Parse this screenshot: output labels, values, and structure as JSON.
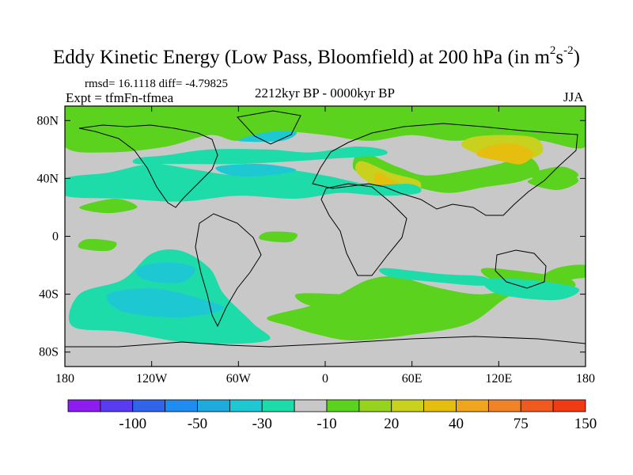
{
  "title": {
    "main": "Eddy Kinetic Energy (Low Pass, Bloomfield) at 200 hPa (in m",
    "sup1": "2",
    "mid": "s",
    "sup2": "-2",
    "end": ")"
  },
  "stats": "rmsd= 16.1118  diff= -4.79825",
  "expt": "Expt = tfmFn-tfmea",
  "period": "2212kyr BP - 0000kyr BP",
  "season": "JJA",
  "chart_data": {
    "type": "heatmap",
    "projection": "cylindrical-equidistant",
    "xlim": [
      -180,
      180
    ],
    "ylim": [
      -90,
      90
    ],
    "x_ticks": [
      {
        "value": -180,
        "label": "180"
      },
      {
        "value": -120,
        "label": "120W"
      },
      {
        "value": -60,
        "label": "60W"
      },
      {
        "value": 0,
        "label": "0"
      },
      {
        "value": 60,
        "label": "60E"
      },
      {
        "value": 120,
        "label": "120E"
      },
      {
        "value": 180,
        "label": "180"
      }
    ],
    "y_ticks": [
      {
        "value": 80,
        "label": "80N"
      },
      {
        "value": 40,
        "label": "40N"
      },
      {
        "value": 0,
        "label": "0"
      },
      {
        "value": -40,
        "label": "40S"
      },
      {
        "value": -80,
        "label": "80S"
      }
    ],
    "colorbar": {
      "colors": [
        "#8c1cf0",
        "#5a3cf0",
        "#2f64eb",
        "#1e8cf0",
        "#1eaadc",
        "#1ec8d2",
        "#1edcaa",
        "#c8c8c8",
        "#5ad21e",
        "#96d21e",
        "#c8d21e",
        "#e6be10",
        "#f0a51e",
        "#f08228",
        "#f05a1e",
        "#f03c14"
      ],
      "labels": [
        {
          "after_index": 1,
          "text": "-100"
        },
        {
          "after_index": 3,
          "text": "-50"
        },
        {
          "after_index": 5,
          "text": "-30"
        },
        {
          "after_index": 7,
          "text": "-10"
        },
        {
          "after_index": 9,
          "text": "20"
        },
        {
          "after_index": 11,
          "text": "40"
        },
        {
          "after_index": 13,
          "text": "75"
        },
        {
          "after_index": 15,
          "text": "150"
        }
      ]
    },
    "regions": [
      {
        "level": 8,
        "points": [
          [
            -180,
            62
          ],
          [
            -150,
            58
          ],
          [
            -110,
            62
          ],
          [
            -80,
            70
          ],
          [
            -60,
            66
          ],
          [
            -30,
            72
          ],
          [
            0,
            70
          ],
          [
            30,
            66
          ],
          [
            60,
            70
          ],
          [
            90,
            66
          ],
          [
            120,
            70
          ],
          [
            150,
            66
          ],
          [
            180,
            62
          ],
          [
            180,
            90
          ],
          [
            -180,
            90
          ]
        ]
      },
      {
        "level": 8,
        "points": [
          [
            25,
            58
          ],
          [
            50,
            48
          ],
          [
            70,
            42
          ],
          [
            100,
            46
          ],
          [
            120,
            50
          ],
          [
            140,
            55
          ],
          [
            148,
            45
          ],
          [
            135,
            38
          ],
          [
            110,
            34
          ],
          [
            85,
            30
          ],
          [
            60,
            35
          ],
          [
            40,
            42
          ],
          [
            20,
            46
          ]
        ]
      },
      {
        "level": 10,
        "points": [
          [
            25,
            52
          ],
          [
            45,
            44
          ],
          [
            65,
            38
          ],
          [
            62,
            30
          ],
          [
            40,
            32
          ],
          [
            22,
            44
          ]
        ]
      },
      {
        "level": 10,
        "points": [
          [
            95,
            62
          ],
          [
            115,
            54
          ],
          [
            135,
            52
          ],
          [
            150,
            58
          ],
          [
            145,
            68
          ],
          [
            120,
            70
          ],
          [
            100,
            68
          ]
        ]
      },
      {
        "level": 11,
        "points": [
          [
            105,
            56
          ],
          [
            122,
            52
          ],
          [
            136,
            50
          ],
          [
            144,
            58
          ],
          [
            130,
            64
          ],
          [
            112,
            62
          ]
        ]
      },
      {
        "level": 11,
        "points": [
          [
            35,
            44
          ],
          [
            45,
            40
          ],
          [
            55,
            34
          ],
          [
            45,
            30
          ],
          [
            35,
            36
          ]
        ]
      },
      {
        "level": 8,
        "points": [
          [
            140,
            42
          ],
          [
            160,
            36
          ],
          [
            175,
            42
          ],
          [
            165,
            48
          ],
          [
            150,
            46
          ]
        ]
      },
      {
        "level": 8,
        "points": [
          [
            140,
            38
          ],
          [
            160,
            32
          ],
          [
            175,
            38
          ],
          [
            165,
            44
          ]
        ]
      },
      {
        "level": 8,
        "points": [
          [
            -170,
            20
          ],
          [
            -150,
            16
          ],
          [
            -130,
            20
          ],
          [
            -145,
            26
          ]
        ]
      },
      {
        "level": 8,
        "points": [
          [
            -170,
            -8
          ],
          [
            -150,
            -10
          ],
          [
            -145,
            -4
          ],
          [
            -165,
            -2
          ]
        ]
      },
      {
        "level": 8,
        "points": [
          [
            -45,
            -2
          ],
          [
            -25,
            -4
          ],
          [
            -20,
            2
          ],
          [
            -40,
            3
          ]
        ]
      },
      {
        "level": 8,
        "points": [
          [
            -5,
            -68
          ],
          [
            20,
            -72
          ],
          [
            60,
            -68
          ],
          [
            100,
            -60
          ],
          [
            130,
            -40
          ],
          [
            170,
            -30
          ],
          [
            180,
            -28
          ],
          [
            180,
            -20
          ],
          [
            160,
            -22
          ],
          [
            140,
            -32
          ],
          [
            110,
            -40
          ],
          [
            80,
            -36
          ],
          [
            50,
            -28
          ],
          [
            30,
            -30
          ],
          [
            10,
            -40
          ],
          [
            -10,
            -48
          ],
          [
            -40,
            -56
          ],
          [
            -25,
            -62
          ]
        ]
      },
      {
        "level": 8,
        "points": [
          [
            -20,
            -40
          ],
          [
            10,
            -40
          ],
          [
            30,
            -42
          ],
          [
            20,
            -48
          ],
          [
            -10,
            -48
          ]
        ]
      },
      {
        "level": 8,
        "points": [
          [
            110,
            -22
          ],
          [
            150,
            -26
          ],
          [
            170,
            -30
          ],
          [
            170,
            -36
          ],
          [
            140,
            -36
          ],
          [
            115,
            -30
          ]
        ]
      },
      {
        "level": 6,
        "points": [
          [
            -180,
            40
          ],
          [
            -150,
            44
          ],
          [
            -120,
            50
          ],
          [
            -90,
            46
          ],
          [
            -60,
            42
          ],
          [
            -30,
            46
          ],
          [
            0,
            42
          ],
          [
            30,
            36
          ],
          [
            60,
            36
          ],
          [
            65,
            30
          ],
          [
            40,
            28
          ],
          [
            10,
            30
          ],
          [
            -20,
            26
          ],
          [
            -60,
            28
          ],
          [
            -100,
            24
          ],
          [
            -140,
            26
          ],
          [
            -180,
            28
          ]
        ]
      },
      {
        "level": 6,
        "points": [
          [
            -130,
            54
          ],
          [
            -110,
            56
          ],
          [
            -80,
            60
          ],
          [
            -40,
            60
          ],
          [
            -10,
            58
          ],
          [
            20,
            62
          ],
          [
            40,
            60
          ],
          [
            40,
            56
          ],
          [
            10,
            54
          ],
          [
            -20,
            52
          ],
          [
            -60,
            50
          ],
          [
            -100,
            50
          ],
          [
            -130,
            50
          ]
        ]
      },
      {
        "level": 5,
        "points": [
          [
            -75,
            48
          ],
          [
            -45,
            50
          ],
          [
            -20,
            46
          ],
          [
            -40,
            42
          ],
          [
            -65,
            42
          ]
        ]
      },
      {
        "level": 5,
        "points": [
          [
            -60,
            66
          ],
          [
            -40,
            72
          ],
          [
            -20,
            72
          ],
          [
            -30,
            66
          ]
        ]
      },
      {
        "level": 6,
        "points": [
          [
            -170,
            -40
          ],
          [
            -140,
            -30
          ],
          [
            -120,
            -12
          ],
          [
            -100,
            -10
          ],
          [
            -80,
            -22
          ],
          [
            -70,
            -40
          ],
          [
            -50,
            -60
          ],
          [
            -40,
            -72
          ],
          [
            -90,
            -74
          ],
          [
            -140,
            -66
          ],
          [
            -175,
            -62
          ]
        ]
      },
      {
        "level": 5,
        "points": [
          [
            -130,
            -22
          ],
          [
            -110,
            -18
          ],
          [
            -90,
            -22
          ],
          [
            -100,
            -32
          ],
          [
            -125,
            -30
          ]
        ]
      },
      {
        "level": 5,
        "points": [
          [
            -150,
            -40
          ],
          [
            -120,
            -36
          ],
          [
            -90,
            -42
          ],
          [
            -70,
            -50
          ],
          [
            -100,
            -56
          ],
          [
            -140,
            -52
          ]
        ]
      },
      {
        "level": 6,
        "points": [
          [
            40,
            -22
          ],
          [
            80,
            -26
          ],
          [
            110,
            -28
          ],
          [
            110,
            -34
          ],
          [
            80,
            -32
          ],
          [
            45,
            -28
          ]
        ]
      },
      {
        "level": 6,
        "points": [
          [
            110,
            -30
          ],
          [
            140,
            -30
          ],
          [
            175,
            -36
          ],
          [
            160,
            -44
          ],
          [
            120,
            -40
          ]
        ]
      }
    ]
  }
}
